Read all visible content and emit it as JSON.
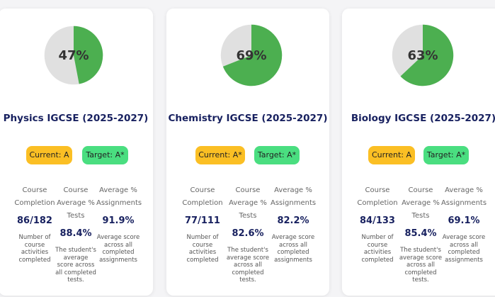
{
  "colors": {
    "pie_fill": "#4caf50",
    "pie_background": "#e0e0e0",
    "current_badge": "#fbbf24",
    "target_badge": "#4ade80",
    "title": "#17205f"
  },
  "courses": [
    {
      "progress_percent": 47,
      "progress_label": "47%",
      "title": "Physics IGCSE (2025-2027)",
      "current": "Current: A",
      "target": "Target: A*",
      "stats": [
        {
          "label": "Course Completion",
          "value": "86/182",
          "desc": "Number of course activities completed"
        },
        {
          "label": "Course Average % Tests",
          "value": "88.4%",
          "desc": "The student's average score across all completed tests."
        },
        {
          "label": "Average % Assignments",
          "value": "91.9%",
          "desc": "Average score across all completed assignments"
        }
      ]
    },
    {
      "progress_percent": 69,
      "progress_label": "69%",
      "title": "Chemistry IGCSE (2025-2027)",
      "current": "Current: A*",
      "target": "Target: A*",
      "stats": [
        {
          "label": "Course Completion",
          "value": "77/111",
          "desc": "Number of course activities completed"
        },
        {
          "label": "Course Average % Tests",
          "value": "82.6%",
          "desc": "The student's average score across all completed tests."
        },
        {
          "label": "Average % Assignments",
          "value": "82.2%",
          "desc": "Average score across all completed assignments"
        }
      ]
    },
    {
      "progress_percent": 63,
      "progress_label": "63%",
      "title": "Biology IGCSE (2025-2027)",
      "current": "Current: A",
      "target": "Target: A*",
      "stats": [
        {
          "label": "Course Completion",
          "value": "84/133",
          "desc": "Number of course activities completed"
        },
        {
          "label": "Course Average % Tests",
          "value": "85.4%",
          "desc": "The student's average score across all completed tests."
        },
        {
          "label": "Average % Assignments",
          "value": "69.1%",
          "desc": "Average score across all completed assignments"
        }
      ]
    }
  ]
}
